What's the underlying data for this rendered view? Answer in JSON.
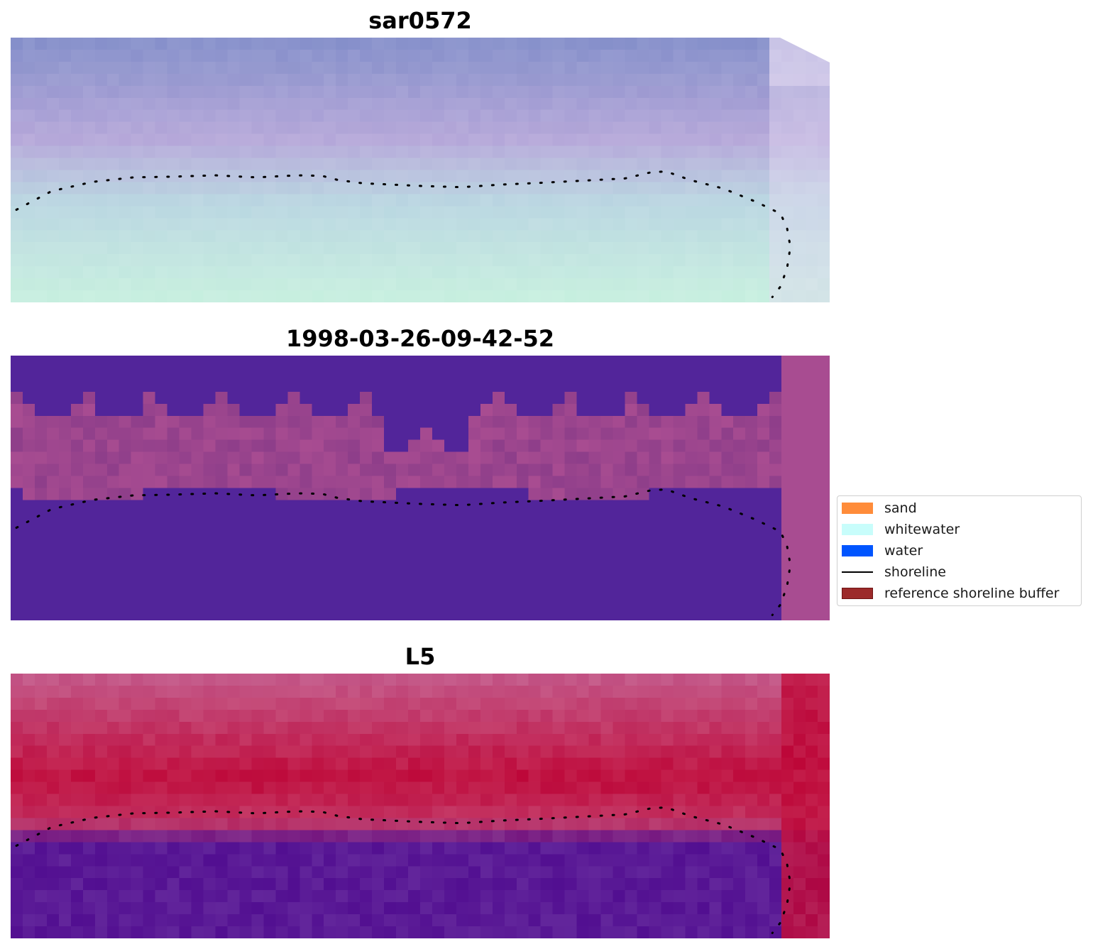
{
  "chart_data": [
    {
      "type": "heatmap",
      "title": "sar0572",
      "colormap": "false-color composite (blue/purple top, pale green bottom)",
      "colors": [
        "#8792cb",
        "#b7a9da",
        "#bcd7e2",
        "#c9f1e0"
      ]
    },
    {
      "type": "heatmap",
      "title": "1998-03-26-09-42-52",
      "colormap": "classification (dark purple / magenta)",
      "colors": [
        "#52259a",
        "#8e3e8a",
        "#a84c91"
      ]
    },
    {
      "type": "heatmap",
      "title": "L5",
      "colormap": "gradient (pink/red top, purple bottom)",
      "colors": [
        "#c45b8b",
        "#c0103f",
        "#5a1a96"
      ]
    }
  ],
  "legend": {
    "placement": "center-right",
    "items": [
      {
        "label": "sand",
        "color": "#ff8c3a",
        "kind": "patch"
      },
      {
        "label": "whitewater",
        "color": "#c8fdfb",
        "kind": "patch"
      },
      {
        "label": "water",
        "color": "#0055ff",
        "kind": "patch"
      },
      {
        "label": "shoreline",
        "color": "#000000",
        "kind": "line"
      },
      {
        "label": "reference shoreline buffer",
        "color": "#9c2a2a",
        "kind": "patch-outlined"
      }
    ]
  },
  "shoreline": {
    "style": "dotted",
    "color": "#000000",
    "points": [
      [
        0.007,
        0.65
      ],
      [
        0.05,
        0.58
      ],
      [
        0.1,
        0.545
      ],
      [
        0.15,
        0.528
      ],
      [
        0.2,
        0.525
      ],
      [
        0.25,
        0.52
      ],
      [
        0.3,
        0.528
      ],
      [
        0.35,
        0.52
      ],
      [
        0.38,
        0.522
      ],
      [
        0.4,
        0.538
      ],
      [
        0.43,
        0.55
      ],
      [
        0.5,
        0.56
      ],
      [
        0.55,
        0.565
      ],
      [
        0.6,
        0.555
      ],
      [
        0.65,
        0.548
      ],
      [
        0.7,
        0.54
      ],
      [
        0.75,
        0.532
      ],
      [
        0.78,
        0.51
      ],
      [
        0.8,
        0.505
      ],
      [
        0.83,
        0.538
      ],
      [
        0.87,
        0.57
      ],
      [
        0.91,
        0.62
      ],
      [
        0.94,
        0.665
      ],
      [
        0.948,
        0.72
      ],
      [
        0.952,
        0.79
      ],
      [
        0.948,
        0.87
      ],
      [
        0.94,
        0.94
      ],
      [
        0.93,
        0.98
      ]
    ]
  }
}
